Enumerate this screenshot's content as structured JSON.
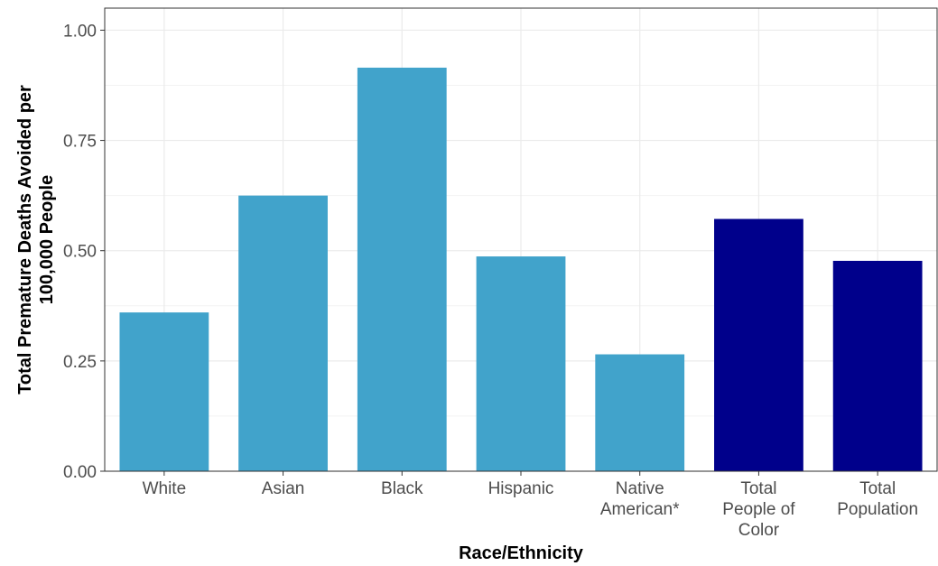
{
  "chart_data": {
    "type": "bar",
    "categories": [
      [
        "White"
      ],
      [
        "Asian"
      ],
      [
        "Black"
      ],
      [
        "Hispanic"
      ],
      [
        "Native",
        "American*"
      ],
      [
        "Total",
        "People of",
        "Color"
      ],
      [
        "Total",
        "Population"
      ]
    ],
    "values": [
      0.36,
      0.625,
      0.915,
      0.487,
      0.265,
      0.572,
      0.477
    ],
    "colors": [
      "#41a3cb",
      "#41a3cb",
      "#41a3cb",
      "#41a3cb",
      "#41a3cb",
      "#00008b",
      "#00008b"
    ],
    "xlabel": "Race/Ethnicity",
    "ylabel": [
      "Total Premature Deaths Avoided per",
      "100,000 People"
    ],
    "ylim": [
      0,
      1.05
    ],
    "yticks": [
      0,
      0.25,
      0.5,
      0.75,
      1
    ],
    "ytick_labels": [
      "0.00",
      "0.25",
      "0.50",
      "0.75",
      "1.00"
    ],
    "grid": true,
    "legend": "none"
  }
}
